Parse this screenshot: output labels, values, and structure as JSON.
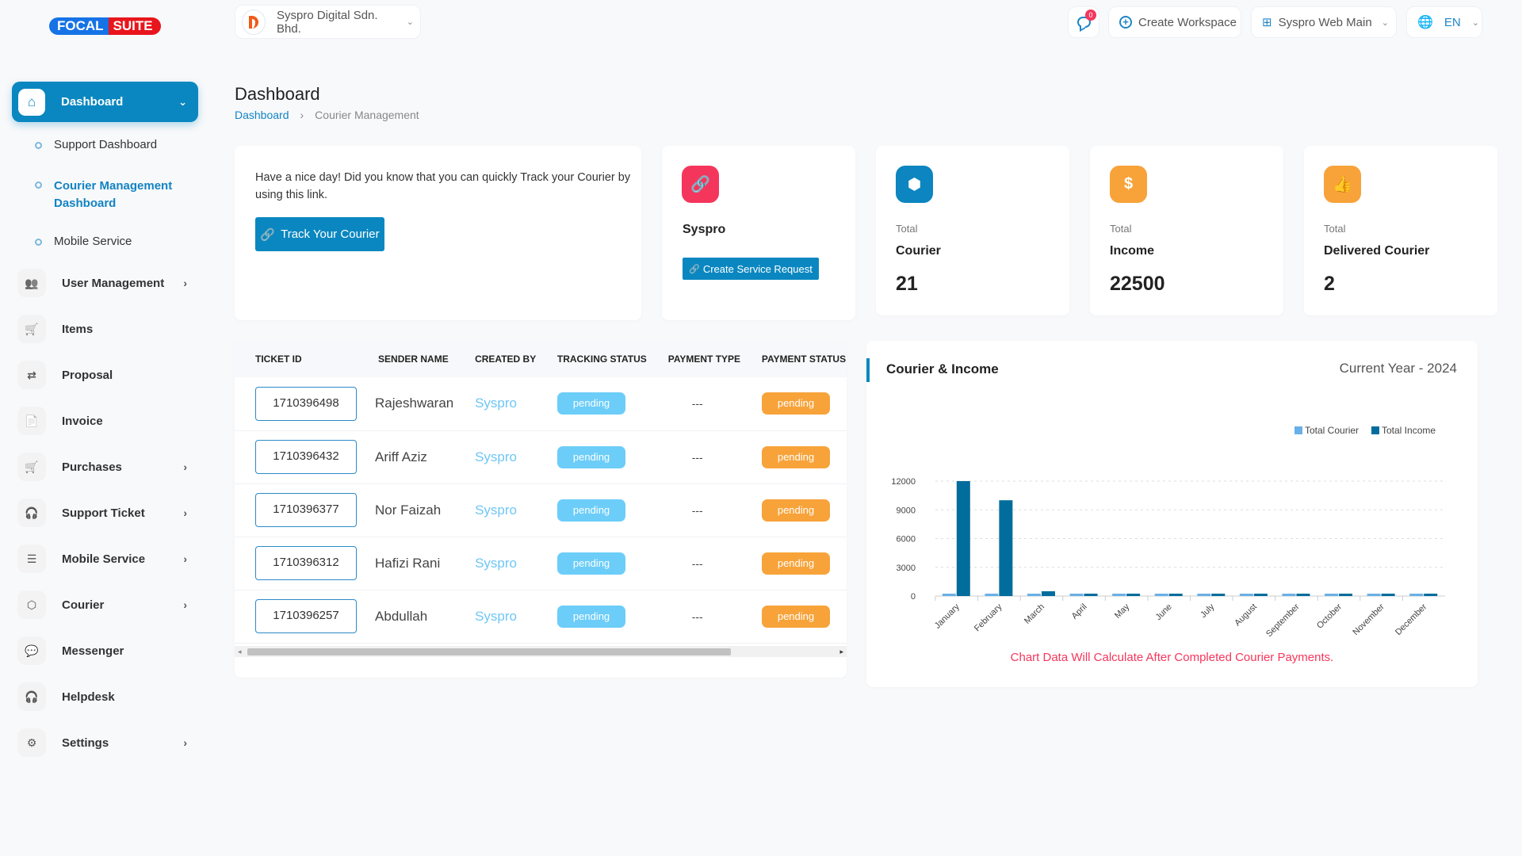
{
  "brand": {
    "part1": "FOCAL",
    "part2": "SUITE"
  },
  "header": {
    "company": "Syspro Digital Sdn. Bhd.",
    "notif_count": "0",
    "create_workspace": "Create Workspace",
    "workspace": "Syspro Web Main",
    "language": "EN"
  },
  "sidebar": {
    "dashboard": "Dashboard",
    "subitems": [
      "Support Dashboard",
      "Courier Management Dashboard",
      "Mobile Service"
    ],
    "items": [
      {
        "label": "User Management",
        "icon": "users-icon",
        "chev": true
      },
      {
        "label": "Items",
        "icon": "cart-icon",
        "chev": false
      },
      {
        "label": "Proposal",
        "icon": "proposal-icon",
        "chev": false
      },
      {
        "label": "Invoice",
        "icon": "invoice-icon",
        "chev": false
      },
      {
        "label": "Purchases",
        "icon": "cart-icon",
        "chev": true
      },
      {
        "label": "Support Ticket",
        "icon": "headset-icon",
        "chev": true
      },
      {
        "label": "Mobile Service",
        "icon": "menu-icon",
        "chev": true
      },
      {
        "label": "Courier",
        "icon": "box-icon",
        "chev": true
      },
      {
        "label": "Messenger",
        "icon": "chat-icon",
        "chev": false
      },
      {
        "label": "Helpdesk",
        "icon": "headset-icon",
        "chev": false
      },
      {
        "label": "Settings",
        "icon": "gear-icon",
        "chev": true
      }
    ]
  },
  "page": {
    "title": "Dashboard",
    "breadcrumb": [
      "Dashboard",
      "Courier Management"
    ]
  },
  "welcome": {
    "text": "Have a nice day! Did you know that you can quickly Track your Courier by using this link.",
    "button": "Track Your Courier"
  },
  "syspro_card": {
    "name": "Syspro",
    "button": "Create Service Request"
  },
  "stats": [
    {
      "label": "Total",
      "title": "Courier",
      "value": "21",
      "color": "#0c85c0",
      "icon": "box-icon",
      "glyph": "⬢"
    },
    {
      "label": "Total",
      "title": "Income",
      "value": "22500",
      "color": "#f7a33a",
      "icon": "dollar-icon",
      "glyph": "$"
    },
    {
      "label": "Total",
      "title": "Delivered Courier",
      "value": "2",
      "color": "#f7a33a",
      "icon": "thumbs-up-icon",
      "glyph": "👍"
    }
  ],
  "table": {
    "columns": [
      "TICKET ID",
      "SENDER NAME",
      "CREATED BY",
      "TRACKING STATUS",
      "PAYMENT TYPE",
      "PAYMENT STATUS"
    ],
    "rows": [
      [
        "1710396498",
        "Rajeshwaran",
        "Syspro",
        "pending",
        "---",
        "pending"
      ],
      [
        "1710396432",
        "Ariff Aziz",
        "Syspro",
        "pending",
        "---",
        "pending"
      ],
      [
        "1710396377",
        "Nor Faizah",
        "Syspro",
        "pending",
        "---",
        "pending"
      ],
      [
        "1710396312",
        "Hafizi Rani",
        "Syspro",
        "pending",
        "---",
        "pending"
      ],
      [
        "1710396257",
        "Abdullah",
        "Syspro",
        "pending",
        "---",
        "pending"
      ]
    ]
  },
  "chart_card": {
    "title": "Courier & Income",
    "period": "Current Year - 2024",
    "note": "Chart Data Will Calculate After Completed Courier Payments."
  },
  "chart_data": {
    "type": "bar",
    "categories": [
      "January",
      "February",
      "March",
      "April",
      "May",
      "June",
      "July",
      "August",
      "September",
      "October",
      "November",
      "December"
    ],
    "series": [
      {
        "name": "Total Courier",
        "color": "#6ab0e6",
        "values": [
          10,
          10,
          1,
          0,
          0,
          0,
          0,
          0,
          0,
          0,
          0,
          0
        ]
      },
      {
        "name": "Total Income",
        "color": "#006d9c",
        "values": [
          12000,
          10000,
          500,
          0,
          0,
          0,
          0,
          0,
          0,
          0,
          0,
          0
        ]
      }
    ],
    "yticks": [
      0,
      3000,
      6000,
      9000,
      12000
    ],
    "ylim": [
      0,
      12000
    ],
    "legend": "top-right",
    "grid": true
  }
}
